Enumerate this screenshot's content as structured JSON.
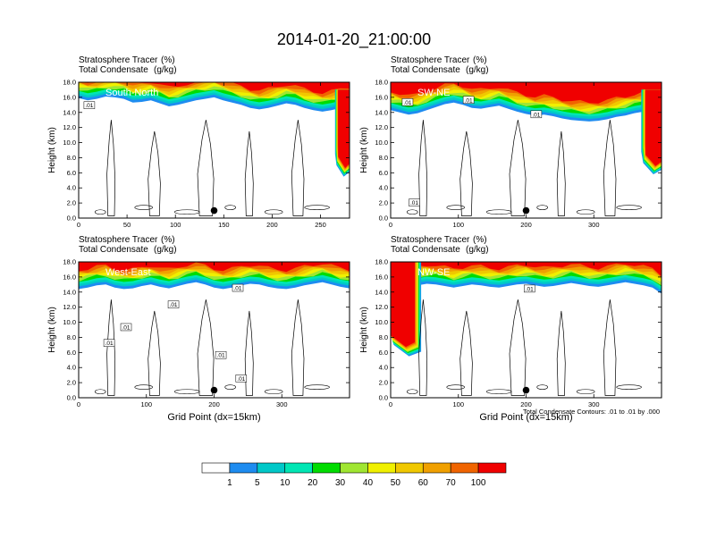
{
  "title": "2014-01-20_21:00:00",
  "colors": {
    "fill_levels": [
      "#ffffff",
      "#1e8cf0",
      "#00c8c8",
      "#00e6b4",
      "#00dc00",
      "#a0e632",
      "#f0f000",
      "#f0c800",
      "#f0a000",
      "#f06400",
      "#f00000"
    ],
    "contour_line": "#000000",
    "frame": "#000000"
  },
  "colorbar": {
    "labels": [
      "1",
      "5",
      "10",
      "20",
      "30",
      "40",
      "50",
      "60",
      "70",
      "100"
    ]
  },
  "note": "Total Condensate Contours: .01 to .01 by .000",
  "chart_data": [
    {
      "type": "heatmap",
      "id": "south-north",
      "region_label": "South-North",
      "field1_label": "Stratosphere Tracer",
      "field1_units": "(%)",
      "field2_label": "Total Condensate",
      "field2_units": "(g/kg)",
      "ylabel": "Height (km)",
      "xlabel": "",
      "xlim": [
        0,
        280
      ],
      "ylim": [
        0,
        18
      ],
      "x_ticks": [
        "0",
        "50",
        "100",
        "150",
        "200",
        "250"
      ],
      "x_tick_values": [
        0,
        50,
        100,
        150,
        200,
        250
      ],
      "y_ticks": [
        "0.0",
        "2.0",
        "4.0",
        "6.0",
        "8.0",
        "10.0",
        "12.0",
        "14.0",
        "16.0",
        "18.0"
      ],
      "tracer_base_km": [
        15.9,
        15.6,
        15.8,
        16.1,
        16.0,
        15.8,
        15.3,
        15.4,
        15.6,
        15.2,
        14.8,
        15.0,
        15.3,
        15.6,
        15.8,
        16.0,
        15.6,
        15.3,
        15.0,
        14.6,
        14.4,
        14.6,
        14.9,
        15.2,
        15.0,
        14.6,
        14.3,
        14.1,
        14.3,
        14.6,
        14.9
      ],
      "high_tracer": {
        "x_range": [
          265,
          280
        ],
        "top_km": 16,
        "bottom_km": 5.5
      },
      "contour_labels": [
        {
          "x": 11,
          "y": 14.9,
          "text": ".01"
        }
      ],
      "marker": {
        "x": 140,
        "y": 1.0
      }
    },
    {
      "type": "heatmap",
      "id": "sw-ne",
      "region_label": "SW-NE",
      "field1_label": "Stratosphere Tracer",
      "field1_units": "(%)",
      "field2_label": "Total Condensate",
      "field2_units": "(g/kg)",
      "ylabel": "Height (km)",
      "xlabel": "",
      "xlim": [
        0,
        400
      ],
      "ylim": [
        0,
        18
      ],
      "x_ticks": [
        "0",
        "100",
        "200",
        "300"
      ],
      "x_tick_values": [
        0,
        100,
        200,
        300
      ],
      "y_ticks": [
        "0.0",
        "2.0",
        "4.0",
        "6.0",
        "8.0",
        "10.0",
        "12.0",
        "14.0",
        "16.0",
        "18.0"
      ],
      "tracer_base_km": [
        14.3,
        14.0,
        13.7,
        13.9,
        14.3,
        14.7,
        15.1,
        15.3,
        15.0,
        14.6,
        14.5,
        14.7,
        14.9,
        14.5,
        14.1,
        13.8,
        13.6,
        13.7,
        13.5,
        13.2,
        13.0,
        12.9,
        12.8,
        12.9,
        13.1,
        13.4,
        13.6,
        13.9,
        14.1,
        14.4,
        14.6
      ],
      "high_tracer": {
        "x_range": [
          370,
          400
        ],
        "top_km": 16,
        "bottom_km": 5.8
      },
      "contour_labels": [
        {
          "x": 25,
          "y": 15.3,
          "text": ".01"
        },
        {
          "x": 115,
          "y": 15.6,
          "text": ".01"
        },
        {
          "x": 215,
          "y": 13.7,
          "text": ".01"
        },
        {
          "x": 35,
          "y": 2.0,
          "text": ".01"
        }
      ],
      "marker": {
        "x": 200,
        "y": 1.0
      }
    },
    {
      "type": "heatmap",
      "id": "west-east",
      "region_label": "West-East",
      "field1_label": "Stratosphere Tracer",
      "field1_units": "(%)",
      "field2_label": "Total Condensate",
      "field2_units": "(g/kg)",
      "ylabel": "Height (km)",
      "xlabel": "Grid Point (dx=15km)",
      "xlim": [
        0,
        400
      ],
      "ylim": [
        0,
        18
      ],
      "x_ticks": [
        "0",
        "100",
        "200",
        "300"
      ],
      "x_tick_values": [
        0,
        100,
        200,
        300
      ],
      "y_ticks": [
        "0.0",
        "2.0",
        "4.0",
        "6.0",
        "8.0",
        "10.0",
        "12.0",
        "14.0",
        "16.0",
        "18.0"
      ],
      "tracer_base_km": [
        14.4,
        14.6,
        14.9,
        15.0,
        14.6,
        14.4,
        14.5,
        14.8,
        15.0,
        14.7,
        14.5,
        14.8,
        15.1,
        15.3,
        15.0,
        14.6,
        14.4,
        14.6,
        14.9,
        15.1,
        15.0,
        14.7,
        14.5,
        14.4,
        14.6,
        14.9,
        15.1,
        15.3,
        15.0,
        14.7,
        14.5
      ],
      "high_tracer": null,
      "contour_labels": [
        {
          "x": 235,
          "y": 14.5,
          "text": ".01"
        },
        {
          "x": 140,
          "y": 12.3,
          "text": ".01"
        },
        {
          "x": 70,
          "y": 9.3,
          "text": ".01"
        },
        {
          "x": 45,
          "y": 7.2,
          "text": ".01"
        },
        {
          "x": 210,
          "y": 5.6,
          "text": ".01"
        },
        {
          "x": 240,
          "y": 2.5,
          "text": ".01"
        }
      ],
      "marker": {
        "x": 200,
        "y": 1.0
      }
    },
    {
      "type": "heatmap",
      "id": "nw-se",
      "region_label": "NW-SE",
      "field1_label": "Stratosphere Tracer",
      "field1_units": "(%)",
      "field2_label": "Total Condensate",
      "field2_units": "(g/kg)",
      "ylabel": "Height (km)",
      "xlabel": "Grid Point (dx=15km)",
      "xlim": [
        0,
        400
      ],
      "ylim": [
        0,
        18
      ],
      "x_ticks": [
        "0",
        "100",
        "200",
        "300"
      ],
      "x_tick_values": [
        0,
        100,
        200,
        300
      ],
      "y_ticks": [
        "0.0",
        "2.0",
        "4.0",
        "6.0",
        "8.0",
        "10.0",
        "12.0",
        "14.0",
        "16.0",
        "18.0"
      ],
      "tracer_base_km": [
        15.0,
        14.8,
        14.7,
        14.9,
        15.1,
        15.0,
        14.8,
        14.6,
        14.8,
        15.0,
        14.9,
        14.7,
        14.6,
        14.8,
        15.0,
        15.1,
        14.9,
        14.7,
        14.8,
        15.0,
        15.2,
        15.0,
        14.8,
        14.7,
        14.9,
        15.1,
        15.3,
        15.1,
        14.9,
        14.6,
        13.8
      ],
      "high_tracer": {
        "x_range": [
          0,
          45
        ],
        "top_km": 17,
        "bottom_km": 5.5
      },
      "contour_labels": [
        {
          "x": 205,
          "y": 14.4,
          "text": ".01"
        }
      ],
      "marker": {
        "x": 200,
        "y": 1.0
      }
    }
  ]
}
